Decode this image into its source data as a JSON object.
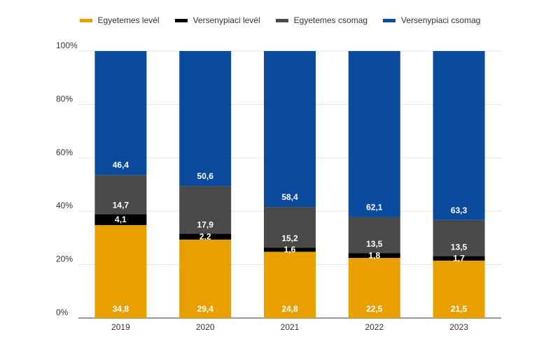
{
  "chart_data": {
    "type": "bar",
    "stacked": true,
    "categories": [
      "2019",
      "2020",
      "2021",
      "2022",
      "2023"
    ],
    "series": [
      {
        "name": "Egyetemes levél",
        "color": "#E8A000",
        "values": [
          34.8,
          29.4,
          24.8,
          22.5,
          21.5
        ],
        "labels": [
          "34,8",
          "29,4",
          "24,8",
          "22,5",
          "21,5"
        ]
      },
      {
        "name": "Versenypiaci levél",
        "color": "#000000",
        "values": [
          4.1,
          2.2,
          1.6,
          1.8,
          1.7
        ],
        "labels": [
          "4,1",
          "2,2",
          "1,6",
          "1,8",
          "1,7"
        ]
      },
      {
        "name": "Egyetemes csomag",
        "color": "#4A4A4A",
        "values": [
          14.7,
          17.9,
          15.2,
          13.5,
          13.5
        ],
        "labels": [
          "14,7",
          "17,9",
          "15,2",
          "13,5",
          "13,5"
        ]
      },
      {
        "name": "Versenypiaci csomag",
        "color": "#0A4B9E",
        "values": [
          46.4,
          50.6,
          58.4,
          62.1,
          63.3
        ],
        "labels": [
          "46,4",
          "50,6",
          "58,4",
          "62,1",
          "63,3"
        ]
      }
    ],
    "yticks": [
      "0%",
      "20%",
      "40%",
      "60%",
      "80%",
      "100%"
    ],
    "ylim": [
      0,
      100
    ],
    "grid": true,
    "legend_position": "top-center"
  }
}
